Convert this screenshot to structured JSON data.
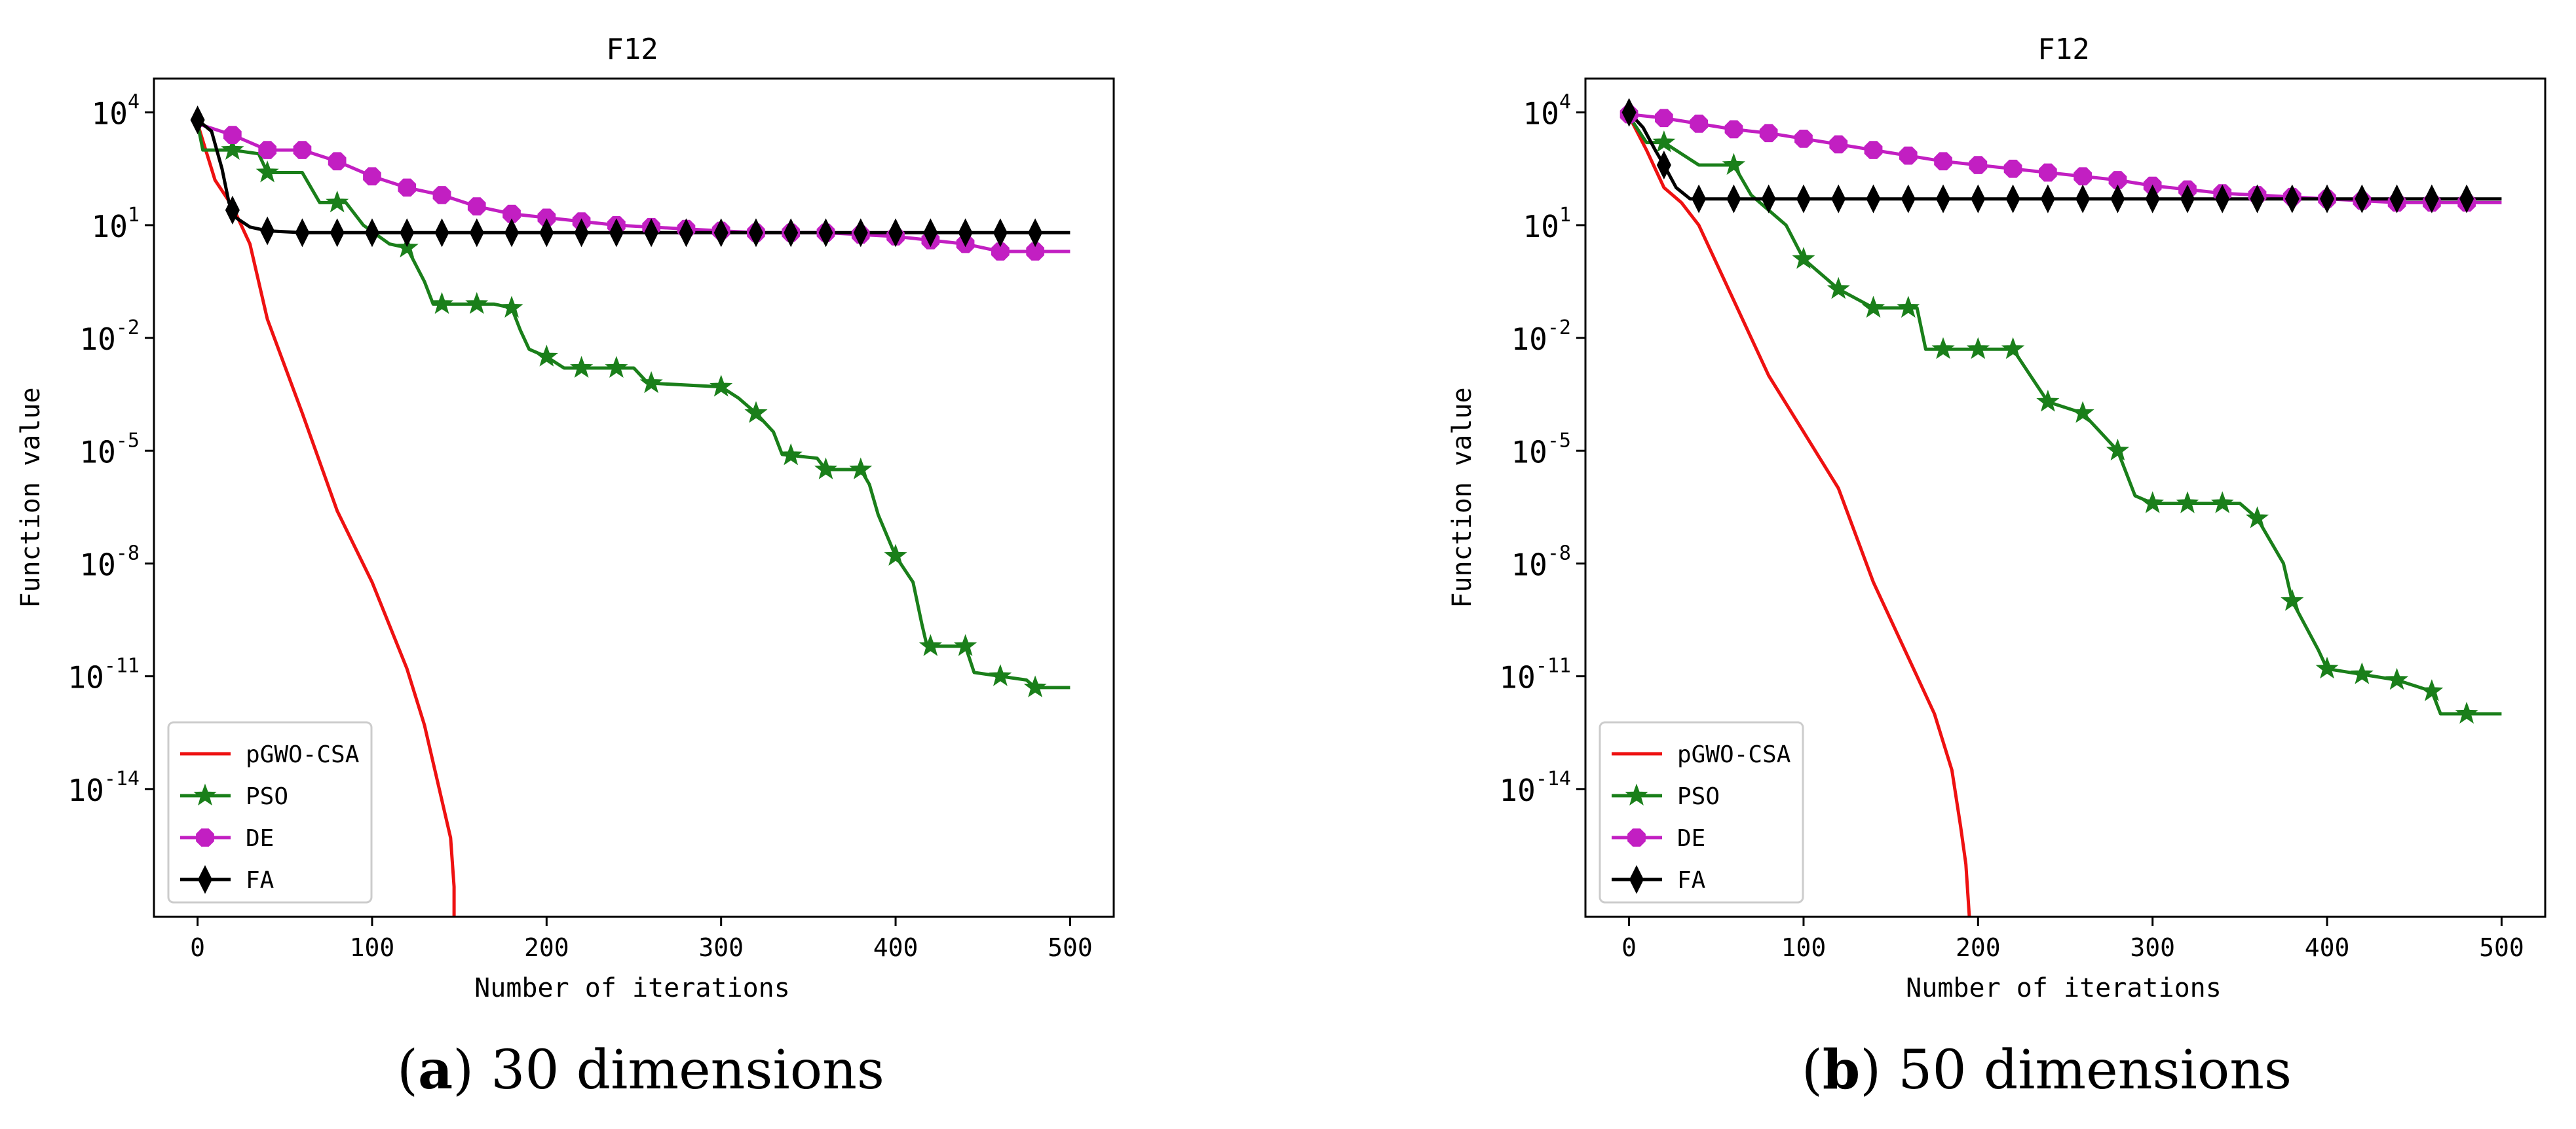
{
  "figure": {
    "caption_a": {
      "letter": "a",
      "text": " 30 dimensions"
    },
    "caption_b": {
      "letter": "b",
      "text": " 50 dimensions"
    }
  },
  "colors": {
    "pGWO-CSA": "#ee1111",
    "PSO": "#1a7f1a",
    "DE": "#c21fc2",
    "FA": "#000000",
    "axis": "#000000"
  },
  "chart_data": [
    {
      "type": "line",
      "title": "F12",
      "xlabel": "Number of iterations",
      "ylabel": "Function value",
      "yscale": "log",
      "xlim": [
        -25,
        525
      ],
      "ylim_log10": [
        -17.4,
        4.9
      ],
      "xticks": [
        0,
        100,
        200,
        300,
        400,
        500
      ],
      "yticks": [
        {
          "exp": 4,
          "base": "10",
          "sup": "4"
        },
        {
          "exp": 1,
          "base": "10",
          "sup": "1"
        },
        {
          "exp": -2,
          "base": "10",
          "sup": "-2"
        },
        {
          "exp": -5,
          "base": "10",
          "sup": "-5"
        },
        {
          "exp": -8,
          "base": "10",
          "sup": "-8"
        },
        {
          "exp": -11,
          "base": "10",
          "sup": "-11"
        },
        {
          "exp": -14,
          "base": "10",
          "sup": "-14"
        }
      ],
      "legend_position": "lower-left",
      "series": [
        {
          "name": "pGWO-CSA",
          "marker": "none",
          "points": [
            [
              0,
              3.7
            ],
            [
              10,
              2.2
            ],
            [
              20,
              1.5
            ],
            [
              30,
              0.5
            ],
            [
              40,
              -1.5
            ],
            [
              60,
              -4.0
            ],
            [
              80,
              -6.6
            ],
            [
              100,
              -8.5
            ],
            [
              120,
              -10.8
            ],
            [
              130,
              -12.3
            ],
            [
              140,
              -14.3
            ],
            [
              145,
              -15.3
            ],
            [
              147,
              -16.6
            ],
            [
              147,
              -17.4
            ]
          ]
        },
        {
          "name": "PSO",
          "marker": "star",
          "points": [
            [
              0,
              3.7
            ],
            [
              3,
              3.0
            ],
            [
              20,
              3.0
            ],
            [
              35,
              2.9
            ],
            [
              40,
              2.4
            ],
            [
              60,
              2.4
            ],
            [
              70,
              1.6
            ],
            [
              85,
              1.6
            ],
            [
              95,
              1.0
            ],
            [
              110,
              0.5
            ],
            [
              120,
              0.4
            ],
            [
              130,
              -0.5
            ],
            [
              135,
              -1.1
            ],
            [
              170,
              -1.1
            ],
            [
              180,
              -1.2
            ],
            [
              185,
              -1.8
            ],
            [
              190,
              -2.3
            ],
            [
              200,
              -2.5
            ],
            [
              210,
              -2.8
            ],
            [
              250,
              -2.8
            ],
            [
              258,
              -3.2
            ],
            [
              300,
              -3.3
            ],
            [
              310,
              -3.6
            ],
            [
              320,
              -4.0
            ],
            [
              330,
              -4.5
            ],
            [
              335,
              -5.1
            ],
            [
              355,
              -5.2
            ],
            [
              360,
              -5.5
            ],
            [
              380,
              -5.5
            ],
            [
              385,
              -5.9
            ],
            [
              390,
              -6.7
            ],
            [
              400,
              -7.8
            ],
            [
              410,
              -8.5
            ],
            [
              415,
              -9.6
            ],
            [
              418,
              -10.2
            ],
            [
              440,
              -10.2
            ],
            [
              445,
              -10.9
            ],
            [
              475,
              -11.1
            ],
            [
              480,
              -11.3
            ],
            [
              500,
              -11.3
            ]
          ],
          "marker_x": [
            20,
            40,
            80,
            120,
            140,
            160,
            180,
            200,
            220,
            240,
            260,
            300,
            320,
            340,
            360,
            380,
            400,
            420,
            440,
            460,
            480
          ]
        },
        {
          "name": "DE",
          "marker": "circle",
          "points": [
            [
              0,
              3.7
            ],
            [
              20,
              3.4
            ],
            [
              40,
              3.0
            ],
            [
              60,
              3.0
            ],
            [
              80,
              2.7
            ],
            [
              100,
              2.3
            ],
            [
              120,
              2.0
            ],
            [
              140,
              1.8
            ],
            [
              160,
              1.5
            ],
            [
              180,
              1.3
            ],
            [
              200,
              1.2
            ],
            [
              220,
              1.1
            ],
            [
              240,
              1.0
            ],
            [
              260,
              0.95
            ],
            [
              280,
              0.9
            ],
            [
              300,
              0.85
            ],
            [
              320,
              0.8
            ],
            [
              340,
              0.8
            ],
            [
              360,
              0.8
            ],
            [
              380,
              0.75
            ],
            [
              400,
              0.7
            ],
            [
              420,
              0.6
            ],
            [
              440,
              0.5
            ],
            [
              460,
              0.3
            ],
            [
              480,
              0.3
            ],
            [
              500,
              0.3
            ]
          ],
          "marker_x": [
            20,
            40,
            60,
            80,
            100,
            120,
            140,
            160,
            180,
            200,
            220,
            240,
            260,
            280,
            300,
            320,
            340,
            360,
            380,
            400,
            420,
            440,
            460,
            480
          ]
        },
        {
          "name": "FA",
          "marker": "diamond",
          "points": [
            [
              0,
              3.8
            ],
            [
              8,
              3.5
            ],
            [
              14,
              2.5
            ],
            [
              18,
              1.6
            ],
            [
              22,
              1.2
            ],
            [
              30,
              0.95
            ],
            [
              40,
              0.85
            ],
            [
              60,
              0.8
            ],
            [
              500,
              0.8
            ]
          ],
          "marker_x": [
            0,
            20,
            40,
            60,
            80,
            100,
            120,
            140,
            160,
            180,
            200,
            220,
            240,
            260,
            280,
            300,
            320,
            340,
            360,
            380,
            400,
            420,
            440,
            460,
            480
          ]
        }
      ]
    },
    {
      "type": "line",
      "title": "F12",
      "xlabel": "Number of iterations",
      "ylabel": "Function value",
      "yscale": "log",
      "xlim": [
        -25,
        525
      ],
      "ylim_log10": [
        -17.4,
        4.9
      ],
      "xticks": [
        0,
        100,
        200,
        300,
        400,
        500
      ],
      "yticks": [
        {
          "exp": 4,
          "base": "10",
          "sup": "4"
        },
        {
          "exp": 1,
          "base": "10",
          "sup": "1"
        },
        {
          "exp": -2,
          "base": "10",
          "sup": "-2"
        },
        {
          "exp": -5,
          "base": "10",
          "sup": "-5"
        },
        {
          "exp": -8,
          "base": "10",
          "sup": "-8"
        },
        {
          "exp": -11,
          "base": "10",
          "sup": "-11"
        },
        {
          "exp": -14,
          "base": "10",
          "sup": "-14"
        }
      ],
      "legend_position": "lower-left",
      "series": [
        {
          "name": "pGWO-CSA",
          "marker": "none",
          "points": [
            [
              0,
              3.9
            ],
            [
              10,
              3.0
            ],
            [
              20,
              2.0
            ],
            [
              30,
              1.6
            ],
            [
              40,
              1.0
            ],
            [
              60,
              -1.0
            ],
            [
              80,
              -3.0
            ],
            [
              100,
              -4.5
            ],
            [
              120,
              -6.0
            ],
            [
              140,
              -8.5
            ],
            [
              160,
              -10.5
            ],
            [
              175,
              -12.0
            ],
            [
              185,
              -13.5
            ],
            [
              190,
              -15.0
            ],
            [
              193,
              -16.0
            ],
            [
              195,
              -17.4
            ]
          ]
        },
        {
          "name": "PSO",
          "marker": "star",
          "points": [
            [
              0,
              3.9
            ],
            [
              10,
              3.2
            ],
            [
              20,
              3.2
            ],
            [
              40,
              2.6
            ],
            [
              60,
              2.6
            ],
            [
              70,
              1.8
            ],
            [
              90,
              1.0
            ],
            [
              100,
              0.1
            ],
            [
              120,
              -0.7
            ],
            [
              140,
              -1.2
            ],
            [
              165,
              -1.2
            ],
            [
              170,
              -2.3
            ],
            [
              220,
              -2.3
            ],
            [
              230,
              -3.0
            ],
            [
              240,
              -3.7
            ],
            [
              260,
              -4.0
            ],
            [
              270,
              -4.5
            ],
            [
              280,
              -5.0
            ],
            [
              285,
              -5.6
            ],
            [
              290,
              -6.2
            ],
            [
              300,
              -6.4
            ],
            [
              350,
              -6.4
            ],
            [
              355,
              -6.6
            ],
            [
              360,
              -6.8
            ],
            [
              375,
              -8.0
            ],
            [
              380,
              -9.0
            ],
            [
              395,
              -10.3
            ],
            [
              400,
              -10.8
            ],
            [
              440,
              -11.1
            ],
            [
              460,
              -11.4
            ],
            [
              465,
              -12.0
            ],
            [
              500,
              -12.0
            ]
          ],
          "marker_x": [
            20,
            60,
            100,
            120,
            140,
            160,
            180,
            200,
            220,
            240,
            260,
            280,
            300,
            320,
            340,
            360,
            380,
            400,
            420,
            440,
            460,
            480
          ]
        },
        {
          "name": "DE",
          "marker": "circle",
          "points": [
            [
              0,
              3.95
            ],
            [
              20,
              3.85
            ],
            [
              40,
              3.7
            ],
            [
              60,
              3.55
            ],
            [
              80,
              3.45
            ],
            [
              100,
              3.3
            ],
            [
              120,
              3.15
            ],
            [
              140,
              3.0
            ],
            [
              160,
              2.85
            ],
            [
              180,
              2.7
            ],
            [
              200,
              2.6
            ],
            [
              220,
              2.5
            ],
            [
              240,
              2.4
            ],
            [
              260,
              2.3
            ],
            [
              280,
              2.2
            ],
            [
              300,
              2.05
            ],
            [
              320,
              1.95
            ],
            [
              340,
              1.85
            ],
            [
              360,
              1.8
            ],
            [
              380,
              1.75
            ],
            [
              400,
              1.7
            ],
            [
              420,
              1.65
            ],
            [
              440,
              1.6
            ],
            [
              460,
              1.6
            ],
            [
              480,
              1.6
            ],
            [
              500,
              1.6
            ]
          ],
          "marker_x": [
            0,
            20,
            40,
            60,
            80,
            100,
            120,
            140,
            160,
            180,
            200,
            220,
            240,
            260,
            280,
            300,
            320,
            340,
            360,
            380,
            400,
            420,
            440,
            460,
            480
          ]
        },
        {
          "name": "FA",
          "marker": "diamond",
          "points": [
            [
              0,
              4.0
            ],
            [
              8,
              3.6
            ],
            [
              15,
              3.0
            ],
            [
              20,
              2.6
            ],
            [
              27,
              2.0
            ],
            [
              35,
              1.7
            ],
            [
              60,
              1.7
            ],
            [
              500,
              1.7
            ]
          ],
          "marker_x": [
            0,
            20,
            40,
            60,
            80,
            100,
            120,
            140,
            160,
            180,
            200,
            220,
            240,
            260,
            280,
            300,
            320,
            340,
            360,
            380,
            400,
            420,
            440,
            460,
            480
          ]
        }
      ]
    }
  ]
}
